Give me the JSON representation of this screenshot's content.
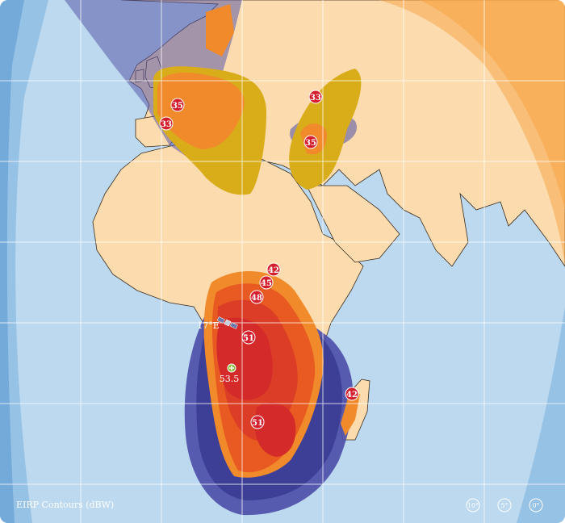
{
  "legend": {
    "title": "EIRP Contours (dBW)"
  },
  "satellite": {
    "position_label": "17°E",
    "icon": "satellite-icon"
  },
  "peak": {
    "value_label": "53.5",
    "icon": "crosshair-plus-icon",
    "color": "#8fc23f"
  },
  "contour_labels": {
    "europe_west": "35",
    "iberia": "33",
    "caucasus_north": "33",
    "caucasus_south": "35",
    "africa_42_north": "42",
    "africa_45": "45",
    "africa_48": "48",
    "africa_51_north": "51",
    "africa_51_south": "51",
    "madagascar": "42"
  },
  "elevation_markers": [
    "10°",
    "5°",
    "0°"
  ],
  "colors": {
    "ocean": "#bcd9ef",
    "land": "#fcdcae",
    "contour_51": "#d42a2a",
    "contour_48": "#e0442a",
    "contour_45": "#e85a22",
    "contour_42": "#f08a2a",
    "contour_35": "#f2a02a",
    "contour_33": "#d9ad1a",
    "blue_band": "#4b4ca8",
    "label_badge": "#d31f2e",
    "elevation_band": "#f6a64a"
  }
}
